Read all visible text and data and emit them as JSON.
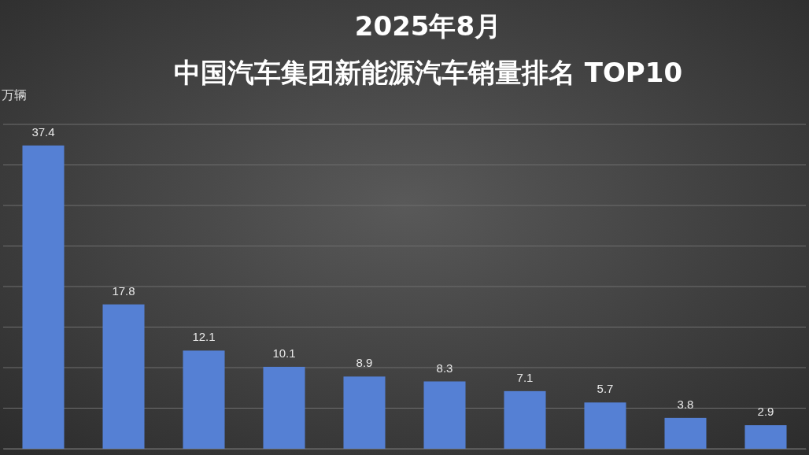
{
  "chart_data": {
    "type": "bar",
    "title": "2025年8月",
    "subtitle": "中国汽车集团新能源汽车销量排名  TOP10",
    "ylabel": "万辆",
    "categories": [
      null,
      null,
      null,
      null,
      null,
      null,
      null,
      null,
      null,
      null
    ],
    "values": [
      37.4,
      17.8,
      12.1,
      10.1,
      8.9,
      8.3,
      7.1,
      5.7,
      3.8,
      2.9
    ],
    "color": "#5580d4",
    "ylim": [
      0,
      40
    ],
    "yticks": [
      {
        "value": 0,
        "label": null
      },
      {
        "value": 5,
        "label": null
      },
      {
        "value": 10,
        "label": null
      },
      {
        "value": 15,
        "label": null
      },
      {
        "value": 20,
        "label": null
      },
      {
        "value": 25,
        "label": null
      },
      {
        "value": 30,
        "label": null
      },
      {
        "value": 35,
        "label": null
      },
      {
        "value": 40,
        "label": null
      }
    ],
    "grid": "y",
    "data_labels": true
  }
}
